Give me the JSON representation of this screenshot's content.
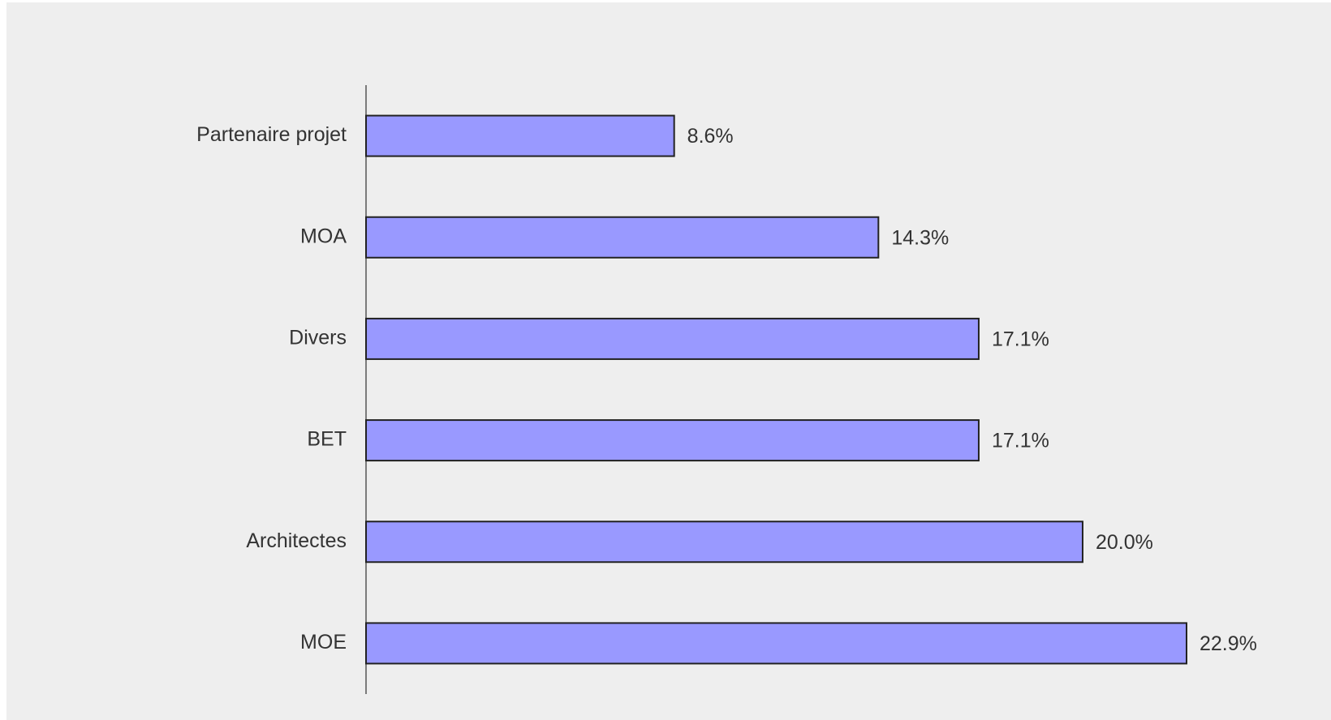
{
  "chart_data": {
    "type": "bar",
    "orientation": "horizontal",
    "categories": [
      "Partenaire projet",
      "MOA",
      "Divers",
      "BET",
      "Architectes",
      "MOE"
    ],
    "values": [
      8.6,
      14.3,
      17.1,
      17.1,
      20.0,
      22.9
    ],
    "value_labels": [
      "8.6%",
      "14.3%",
      "17.1%",
      "17.1%",
      "20.0%",
      "22.9%"
    ],
    "color": "#9999ff"
  }
}
